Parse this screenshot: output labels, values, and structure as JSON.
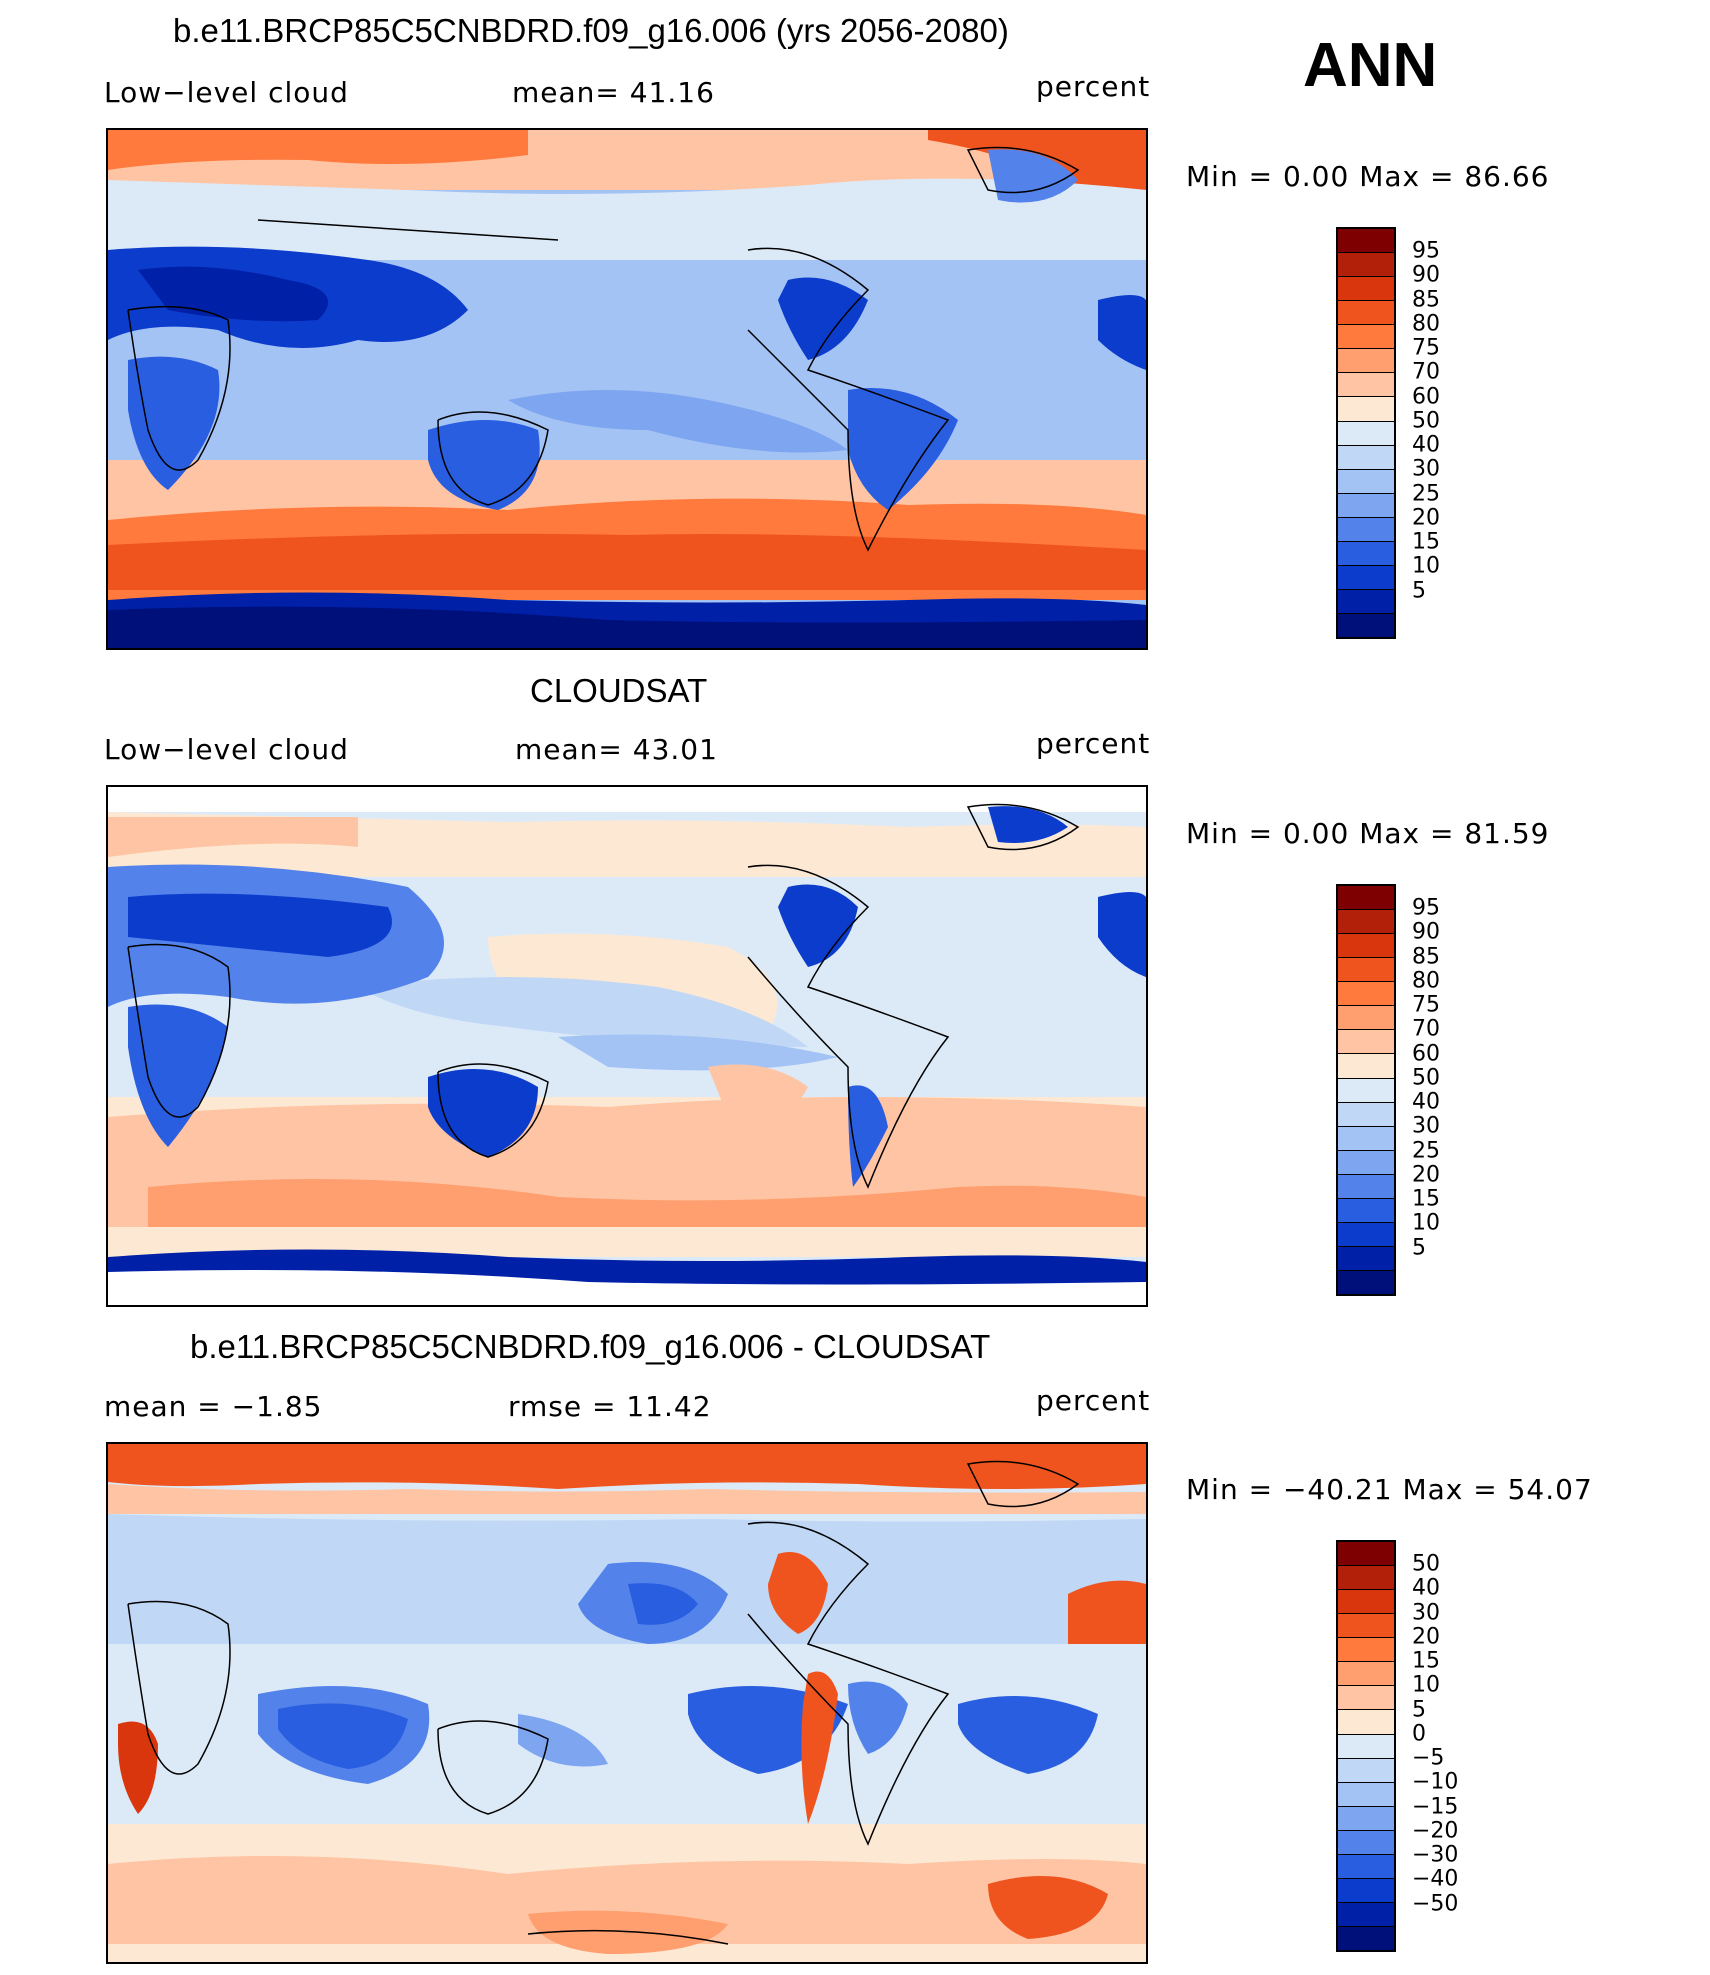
{
  "season": "ANN",
  "panels": [
    {
      "id": "model",
      "title": "b.e11.BRCP85C5CNBDRD.f09_g16.006 (yrs 2056-2080)",
      "left_label": "Low−level cloud",
      "mid_label": "mean=   41.16",
      "units": "percent",
      "minmax": "Min  =      0.00  Max  =    86.66"
    },
    {
      "id": "obs",
      "title": "CLOUDSAT",
      "left_label": "Low−level cloud",
      "mid_label": "mean=   43.01",
      "units": "percent",
      "minmax": "Min  =      0.00  Max  =    81.59"
    },
    {
      "id": "diff",
      "title": "b.e11.BRCP85C5CNBDRD.f09_g16.006 - CLOUDSAT",
      "left_label": "mean  =    −1.85",
      "mid_label": "rmse  =    11.42",
      "units": "percent",
      "minmax": "Min  = −40.21  Max  =    54.07"
    }
  ],
  "colorbars": {
    "field": {
      "levels": [
        "95",
        "90",
        "85",
        "80",
        "75",
        "70",
        "60",
        "50",
        "40",
        "30",
        "25",
        "20",
        "15",
        "10",
        "5"
      ],
      "colors": [
        "#7f0000",
        "#b3200a",
        "#d9360e",
        "#f0541e",
        "#ff7a3c",
        "#ff9e6e",
        "#ffc4a3",
        "#fde8d3",
        "#dceaf8",
        "#c0d7f6",
        "#a4c3f5",
        "#7ea5f0",
        "#5282ea",
        "#2a5ee0",
        "#0c3ccc",
        "#0020a8",
        "#00107a"
      ]
    },
    "diff": {
      "levels": [
        "50",
        "40",
        "30",
        "20",
        "15",
        "10",
        "5",
        "0",
        "−5",
        "−10",
        "−15",
        "−20",
        "−30",
        "−40",
        "−50"
      ],
      "colors": [
        "#7f0000",
        "#b3200a",
        "#d9360e",
        "#f0541e",
        "#ff7a3c",
        "#ff9e6e",
        "#ffc4a3",
        "#fde8d3",
        "#dceaf8",
        "#c0d7f6",
        "#a4c3f5",
        "#7ea5f0",
        "#5282ea",
        "#2a5ee0",
        "#0c3ccc",
        "#0020a8",
        "#00107a"
      ]
    }
  }
}
